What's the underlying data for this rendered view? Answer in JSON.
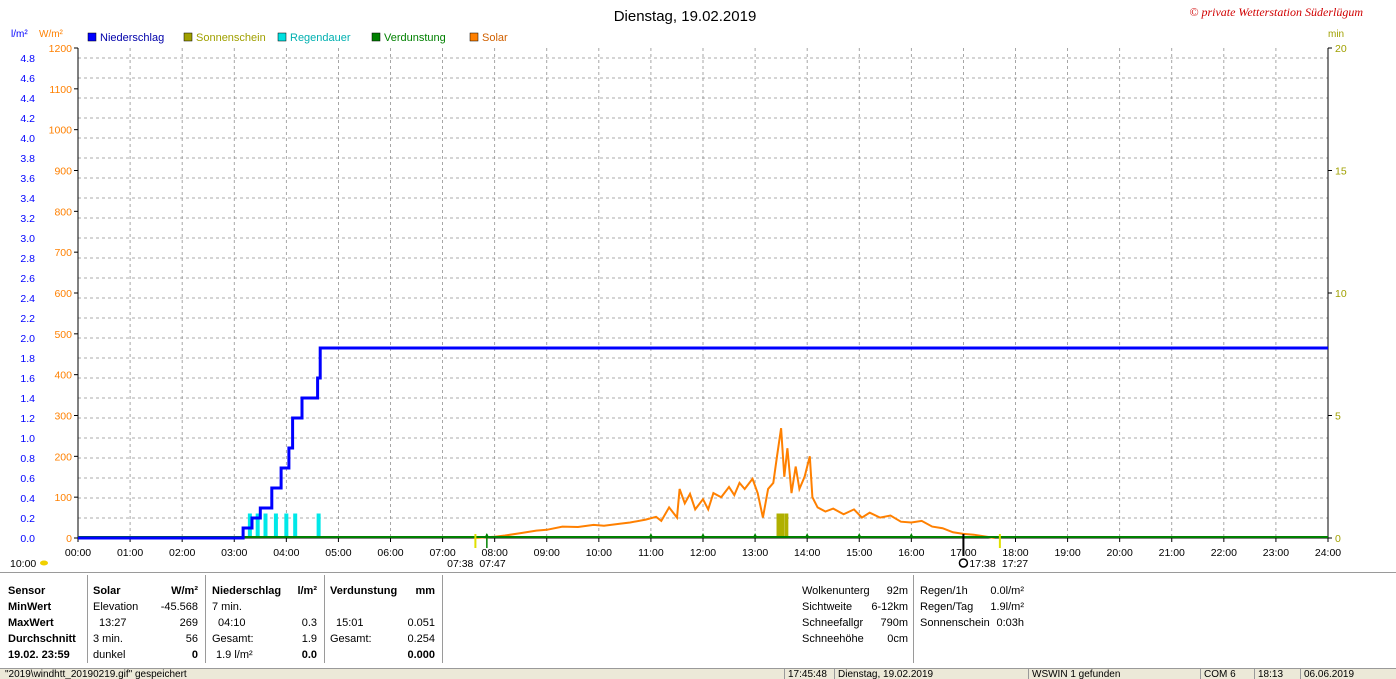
{
  "chart_data": {
    "type": "line",
    "title": "Dienstag, 19.02.2019",
    "copyright": "© private Wetterstation Süderlügum",
    "left_axis_unit": "l/m²",
    "solar_axis_unit": "W/m²",
    "right_axis_unit": "min",
    "x_ticks": [
      "00:00",
      "01:00",
      "02:00",
      "03:00",
      "04:00",
      "05:00",
      "06:00",
      "07:00",
      "08:00",
      "09:00",
      "10:00",
      "11:00",
      "12:00",
      "13:00",
      "14:00",
      "15:00",
      "16:00",
      "17:00",
      "18:00",
      "19:00",
      "20:00",
      "21:00",
      "22:00",
      "23:00",
      "24:00"
    ],
    "y_left_ticks": [
      "0.0",
      "0.2",
      "0.4",
      "0.6",
      "0.8",
      "1.0",
      "1.2",
      "1.4",
      "1.6",
      "1.8",
      "2.0",
      "2.2",
      "2.4",
      "2.6",
      "2.8",
      "3.0",
      "3.2",
      "3.4",
      "3.6",
      "3.8",
      "4.0",
      "4.2",
      "4.4",
      "4.6",
      "4.8"
    ],
    "ylim_left": [
      0,
      4.9
    ],
    "y_solar_ticks": [
      "0",
      "100",
      "200",
      "300",
      "400",
      "500",
      "600",
      "700",
      "800",
      "900",
      "1000",
      "1100",
      "1200"
    ],
    "ylim_solar": [
      0,
      1200
    ],
    "y_right_ticks": [
      "0",
      "5",
      "10",
      "15",
      "20"
    ],
    "ylim_right": [
      0,
      20
    ],
    "grid": true,
    "legend": [
      {
        "name": "Niederschlag",
        "color": "#0000ff"
      },
      {
        "name": "Sonnenschein",
        "color": "#a0a000"
      },
      {
        "name": "Regendauer",
        "color": "#00e0e0"
      },
      {
        "name": "Verdunstung",
        "color": "#008000"
      },
      {
        "name": "Solar",
        "color": "#ff8000"
      }
    ],
    "niederschlag_steps": [
      {
        "t": 0.0,
        "v": 0.0
      },
      {
        "t": 3.17,
        "v": 0.0
      },
      {
        "t": 3.17,
        "v": 0.1
      },
      {
        "t": 3.34,
        "v": 0.1
      },
      {
        "t": 3.34,
        "v": 0.2
      },
      {
        "t": 3.5,
        "v": 0.2
      },
      {
        "t": 3.5,
        "v": 0.3
      },
      {
        "t": 3.72,
        "v": 0.3
      },
      {
        "t": 3.72,
        "v": 0.5
      },
      {
        "t": 3.9,
        "v": 0.5
      },
      {
        "t": 3.9,
        "v": 0.7
      },
      {
        "t": 4.05,
        "v": 0.7
      },
      {
        "t": 4.05,
        "v": 0.9
      },
      {
        "t": 4.12,
        "v": 0.9
      },
      {
        "t": 4.12,
        "v": 1.2
      },
      {
        "t": 4.3,
        "v": 1.2
      },
      {
        "t": 4.3,
        "v": 1.4
      },
      {
        "t": 4.6,
        "v": 1.4
      },
      {
        "t": 4.6,
        "v": 1.6
      },
      {
        "t": 4.65,
        "v": 1.6
      },
      {
        "t": 4.65,
        "v": 1.9
      },
      {
        "t": 24.0,
        "v": 1.9
      }
    ],
    "regendauer_bars": [
      {
        "t": 3.3,
        "min": 1
      },
      {
        "t": 3.45,
        "min": 1
      },
      {
        "t": 3.6,
        "min": 1
      },
      {
        "t": 3.8,
        "min": 1
      },
      {
        "t": 4.0,
        "min": 1
      },
      {
        "t": 4.17,
        "min": 1
      },
      {
        "t": 4.62,
        "min": 1
      }
    ],
    "sonnenschein_bars": [
      {
        "t": 13.45,
        "min": 1
      },
      {
        "t": 13.52,
        "min": 1
      },
      {
        "t": 13.6,
        "min": 1
      }
    ],
    "verdunstung_markers": [
      7.85,
      11.0,
      12.0,
      13.0,
      14.0,
      15.0,
      16.0
    ],
    "solar_points": [
      {
        "t": 7.6,
        "v": 0
      },
      {
        "t": 8.0,
        "v": 3
      },
      {
        "t": 8.2,
        "v": 6
      },
      {
        "t": 8.5,
        "v": 12
      },
      {
        "t": 8.8,
        "v": 18
      },
      {
        "t": 9.0,
        "v": 20
      },
      {
        "t": 9.3,
        "v": 28
      },
      {
        "t": 9.6,
        "v": 27
      },
      {
        "t": 9.9,
        "v": 32
      },
      {
        "t": 10.1,
        "v": 30
      },
      {
        "t": 10.4,
        "v": 35
      },
      {
        "t": 10.6,
        "v": 38
      },
      {
        "t": 10.9,
        "v": 45
      },
      {
        "t": 11.1,
        "v": 52
      },
      {
        "t": 11.2,
        "v": 42
      },
      {
        "t": 11.35,
        "v": 75
      },
      {
        "t": 11.5,
        "v": 50
      },
      {
        "t": 11.55,
        "v": 120
      },
      {
        "t": 11.65,
        "v": 85
      },
      {
        "t": 11.75,
        "v": 108
      },
      {
        "t": 11.85,
        "v": 70
      },
      {
        "t": 12.0,
        "v": 95
      },
      {
        "t": 12.1,
        "v": 70
      },
      {
        "t": 12.2,
        "v": 110
      },
      {
        "t": 12.35,
        "v": 100
      },
      {
        "t": 12.5,
        "v": 125
      },
      {
        "t": 12.6,
        "v": 105
      },
      {
        "t": 12.7,
        "v": 135
      },
      {
        "t": 12.8,
        "v": 120
      },
      {
        "t": 12.95,
        "v": 145
      },
      {
        "t": 13.05,
        "v": 110
      },
      {
        "t": 13.15,
        "v": 50
      },
      {
        "t": 13.25,
        "v": 120
      },
      {
        "t": 13.35,
        "v": 135
      },
      {
        "t": 13.42,
        "v": 200
      },
      {
        "t": 13.5,
        "v": 269
      },
      {
        "t": 13.56,
        "v": 150
      },
      {
        "t": 13.62,
        "v": 220
      },
      {
        "t": 13.7,
        "v": 110
      },
      {
        "t": 13.78,
        "v": 175
      },
      {
        "t": 13.85,
        "v": 120
      },
      {
        "t": 13.95,
        "v": 150
      },
      {
        "t": 14.05,
        "v": 200
      },
      {
        "t": 14.1,
        "v": 100
      },
      {
        "t": 14.2,
        "v": 75
      },
      {
        "t": 14.35,
        "v": 65
      },
      {
        "t": 14.5,
        "v": 72
      },
      {
        "t": 14.7,
        "v": 58
      },
      {
        "t": 14.9,
        "v": 70
      },
      {
        "t": 15.05,
        "v": 50
      },
      {
        "t": 15.2,
        "v": 62
      },
      {
        "t": 15.4,
        "v": 50
      },
      {
        "t": 15.6,
        "v": 55
      },
      {
        "t": 15.8,
        "v": 40
      },
      {
        "t": 16.0,
        "v": 38
      },
      {
        "t": 16.2,
        "v": 42
      },
      {
        "t": 16.4,
        "v": 28
      },
      {
        "t": 16.6,
        "v": 24
      },
      {
        "t": 16.8,
        "v": 14
      },
      {
        "t": 17.0,
        "v": 10
      },
      {
        "t": 17.2,
        "v": 8
      },
      {
        "t": 17.4,
        "v": 4
      },
      {
        "t": 17.6,
        "v": 0
      }
    ],
    "sun_markers": {
      "rise_left": "07:38",
      "rise_right": "07:47",
      "set_left": "17:38",
      "set_right": "17:27",
      "left_corner": "10:00"
    }
  },
  "stats": {
    "col1": {
      "title": "Sensor",
      "rows": [
        "MinWert",
        "MaxWert",
        "Durchschnitt",
        "19.02. 23:59"
      ]
    },
    "col2": {
      "title": "Solar",
      "unit": "W/m²",
      "rows": [
        {
          "label": "Elevation",
          "value": "-45.568"
        },
        {
          "label": "13:27",
          "value": "269"
        },
        {
          "label": "3 min.",
          "value": "56"
        },
        {
          "label": "dunkel",
          "value": "0"
        }
      ]
    },
    "col3": {
      "title": "Niederschlag",
      "unit": "l/m²",
      "rows": [
        {
          "label": "7 min.",
          "value": ""
        },
        {
          "label": "04:10",
          "value": "0.3"
        },
        {
          "label": "Gesamt:",
          "value": "1.9"
        },
        {
          "label": "1.9 l/m²",
          "value": "0.0"
        }
      ]
    },
    "col4": {
      "title": "Verdunstung",
      "unit": "mm",
      "rows": [
        {
          "label": "",
          "value": ""
        },
        {
          "label": "15:01",
          "value": "0.051"
        },
        {
          "label": "Gesamt:",
          "value": "0.254"
        },
        {
          "label": "",
          "value": "0.000"
        }
      ]
    },
    "extra1": {
      "rows": [
        {
          "label": "Wolkenunterg",
          "value": "92m"
        },
        {
          "label": "Sichtweite",
          "value": "6-12km"
        },
        {
          "label": "Schneefallgr",
          "value": "790m"
        },
        {
          "label": "Schneehöhe",
          "value": "0cm"
        }
      ]
    },
    "extra2": {
      "rows": [
        {
          "label": "Regen/1h",
          "value": "0.0l/m²"
        },
        {
          "label": "Regen/Tag",
          "value": "1.9l/m²"
        },
        {
          "label": "Sonnenschein",
          "value": "0:03h"
        }
      ]
    }
  },
  "statusbar": {
    "file": "\"2019\\windhtt_20190219.gif\" gespeichert",
    "time": "17:45:48",
    "date": "Dienstag, 19.02.2019",
    "wswin": "WSWIN 1 gefunden",
    "com": "COM 6",
    "clock": "18:13",
    "today": "06.06.2019"
  }
}
